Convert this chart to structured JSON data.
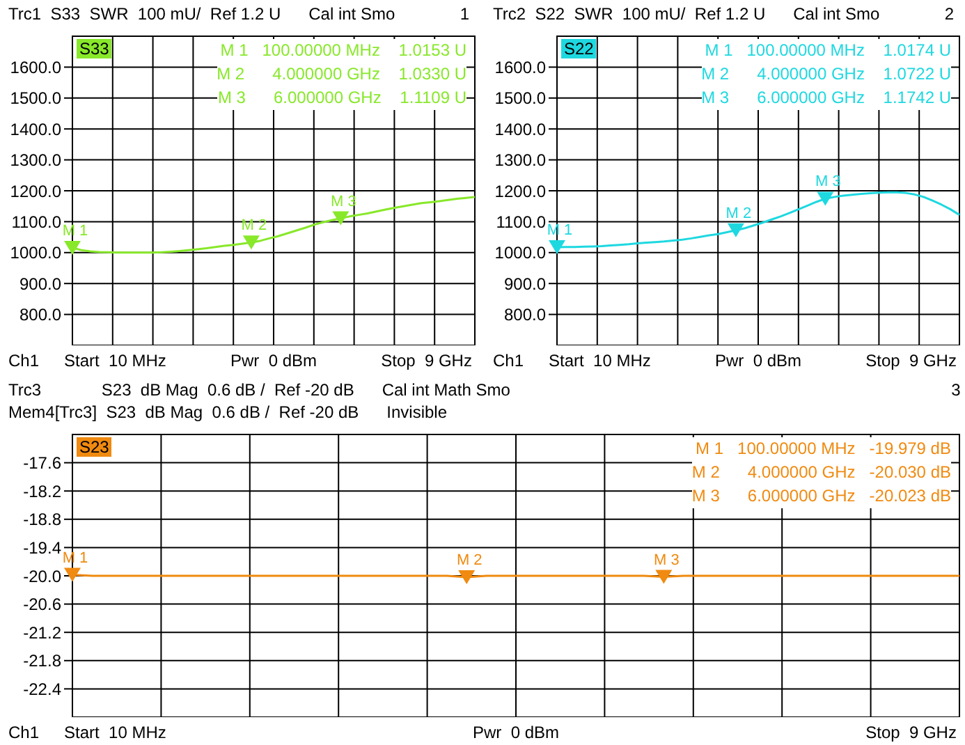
{
  "chart_data": [
    {
      "type": "line",
      "title": "Trc1  S33  SWR  100 mU/  Ref 1.2 U      Cal int Smo              1",
      "xlabel": "Ch1     Start  10 MHz     Pwr  0 dBm     Stop  9 GHz",
      "categories": [
        null,
        null,
        null,
        null,
        null,
        null,
        null,
        null,
        null,
        null,
        null,
        null,
        null,
        null,
        null,
        null,
        null,
        null,
        null,
        null,
        null,
        null,
        null,
        null,
        null,
        null,
        null,
        null,
        null,
        null,
        null,
        null,
        null,
        null,
        null,
        null,
        null,
        null,
        null,
        null,
        null,
        null,
        null,
        null,
        null,
        null
      ],
      "series": [
        {
          "name": "S33",
          "color": "#88e82a",
          "values": [
            1015.3,
            1008,
            1004,
            1002,
            1001,
            1000,
            1000,
            1000,
            1000,
            1000,
            1001,
            1003,
            1005,
            1008,
            1011,
            1014,
            1018,
            1022,
            1025,
            1029,
            1033,
            1038,
            1046,
            1053,
            1062,
            1071,
            1080,
            1090,
            1098,
            1105,
            1111,
            1117,
            1122,
            1127,
            1133,
            1139,
            1145,
            1150,
            1155,
            1160,
            1163,
            1166,
            1170,
            1174,
            1177,
            1180
          ]
        },
        {
          "type": "scatter",
          "marker": "triangle",
          "color": "#88e82a",
          "values": [
            1015.3,
            null,
            null,
            null,
            null,
            null,
            null,
            null,
            null,
            null,
            null,
            null,
            null,
            null,
            null,
            null,
            null,
            null,
            null,
            null,
            1033,
            null,
            null,
            null,
            null,
            null,
            null,
            null,
            null,
            null,
            1110.9,
            null,
            null,
            null,
            null,
            null,
            null,
            null,
            null,
            null,
            null,
            null,
            null,
            null,
            null,
            null
          ],
          "value_labels": [
            "M 1",
            null,
            null,
            null,
            null,
            null,
            null,
            null,
            null,
            null,
            null,
            null,
            null,
            null,
            null,
            null,
            null,
            null,
            null,
            null,
            "M 2",
            null,
            null,
            null,
            null,
            null,
            null,
            null,
            null,
            null,
            "M 3",
            null,
            null,
            null,
            null,
            null,
            null,
            null,
            null,
            null,
            null,
            null,
            null,
            null,
            null,
            null
          ]
        }
      ],
      "ylim": [
        700,
        1700
      ],
      "yticks": [
        {
          "value": 800,
          "label": "800.0"
        },
        {
          "value": 900,
          "label": "900.0"
        },
        {
          "value": 1000,
          "label": "1000.0"
        },
        {
          "value": 1100,
          "label": "1100.0"
        },
        {
          "value": 1200,
          "label": "1200.0"
        },
        {
          "value": 1300,
          "label": "1300.0"
        },
        {
          "value": 1400,
          "label": "1400.0"
        },
        {
          "value": 1500,
          "label": "1500.0"
        },
        {
          "value": 1600,
          "label": "1600.0"
        }
      ],
      "grid": true,
      "tick_labels": "y",
      "marker": "none",
      "line_style": "solid",
      "annotations": [
        "M 1   100.00000 MHz    1.0153 U",
        "M 2      4.000000 GHz    1.0330 U",
        "M 3      6.000000 GHz    1.1109 U"
      ]
    },
    {
      "type": "line",
      "title": "Trc2  S22  SWR  100 mU/  Ref 1.2 U      Cal int Smo              2",
      "xlabel": "Ch1     Start  10 MHz     Pwr  0 dBm     Stop  9 GHz",
      "categories": [
        null,
        null,
        null,
        null,
        null,
        null,
        null,
        null,
        null,
        null,
        null,
        null,
        null,
        null,
        null,
        null,
        null,
        null,
        null,
        null,
        null,
        null,
        null,
        null,
        null,
        null,
        null,
        null,
        null,
        null,
        null,
        null,
        null,
        null,
        null,
        null,
        null,
        null,
        null,
        null,
        null,
        null,
        null,
        null,
        null,
        null
      ],
      "series": [
        {
          "name": "S22",
          "color": "#1ed8e0",
          "values": [
            1017.4,
            1018,
            1018,
            1019,
            1020,
            1021,
            1023,
            1025,
            1027,
            1030,
            1032,
            1034,
            1036,
            1039,
            1042,
            1046,
            1051,
            1056,
            1060,
            1066,
            1072.2,
            1079,
            1088,
            1097,
            1107,
            1117,
            1128,
            1140,
            1152,
            1164,
            1174.2,
            1180,
            1184,
            1187,
            1190,
            1192,
            1194,
            1195,
            1195,
            1193,
            1188,
            1180,
            1168,
            1155,
            1140,
            1122
          ]
        },
        {
          "type": "scatter",
          "marker": "triangle",
          "color": "#1ed8e0",
          "values": [
            1017.4,
            null,
            null,
            null,
            null,
            null,
            null,
            null,
            null,
            null,
            null,
            null,
            null,
            null,
            null,
            null,
            null,
            null,
            null,
            null,
            1072.2,
            null,
            null,
            null,
            null,
            null,
            null,
            null,
            null,
            null,
            1174.2,
            null,
            null,
            null,
            null,
            null,
            null,
            null,
            null,
            null,
            null,
            null,
            null,
            null,
            null,
            null
          ],
          "value_labels": [
            "M 1",
            null,
            null,
            null,
            null,
            null,
            null,
            null,
            null,
            null,
            null,
            null,
            null,
            null,
            null,
            null,
            null,
            null,
            null,
            null,
            "M 2",
            null,
            null,
            null,
            null,
            null,
            null,
            null,
            null,
            null,
            "M 3",
            null,
            null,
            null,
            null,
            null,
            null,
            null,
            null,
            null,
            null,
            null,
            null,
            null,
            null,
            null
          ]
        }
      ],
      "ylim": [
        700,
        1700
      ],
      "yticks": [
        {
          "value": 800,
          "label": "800.0"
        },
        {
          "value": 900,
          "label": "900.0"
        },
        {
          "value": 1000,
          "label": "1000.0"
        },
        {
          "value": 1100,
          "label": "1100.0"
        },
        {
          "value": 1200,
          "label": "1200.0"
        },
        {
          "value": 1300,
          "label": "1300.0"
        },
        {
          "value": 1400,
          "label": "1400.0"
        },
        {
          "value": 1500,
          "label": "1500.0"
        },
        {
          "value": 1600,
          "label": "1600.0"
        }
      ],
      "grid": true,
      "tick_labels": "y",
      "marker": "none",
      "line_style": "solid",
      "annotations": [
        "M 1   100.00000 MHz    1.0174 U",
        "M 2      4.000000 GHz    1.0722 U",
        "M 3      6.000000 GHz    1.1742 U"
      ]
    },
    {
      "type": "line",
      "title": "Trc3             S23  dB Mag  0.6 dB /  Ref -20 dB      Cal int Math Smo                                                                                               3",
      "subtitle": "Mem4[Trc3]  S23  dB Mag  0.6 dB /  Ref -20 dB      Invisible",
      "xlabel": "Ch1     Start  10 MHz     Pwr  0 dBm     Stop  9 GHz",
      "categories": [
        null,
        null,
        null,
        null,
        null,
        null,
        null,
        null,
        null,
        null,
        null,
        null,
        null,
        null,
        null,
        null,
        null,
        null,
        null,
        null,
        null,
        null,
        null,
        null,
        null,
        null,
        null,
        null,
        null,
        null,
        null,
        null,
        null,
        null,
        null,
        null,
        null,
        null,
        null,
        null,
        null,
        null,
        null,
        null,
        null,
        null
      ],
      "series": [
        {
          "name": "S23",
          "color": "#f08a10",
          "values": [
            -19.979,
            -20.0,
            -20.0,
            -20.0,
            -20.0,
            -20.0,
            -20.0,
            -20.0,
            -20.0,
            -20.0,
            -20.0,
            -20.0,
            -20.0,
            -20.0,
            -20.0,
            -20.0,
            -20.0,
            -20.0,
            -20.0,
            -20.0,
            -20.03,
            -20.0,
            -20.0,
            -20.0,
            -20.0,
            -20.0,
            -20.0,
            -20.0,
            -20.0,
            -20.0,
            -20.023,
            -20.0,
            -20.0,
            -20.0,
            -20.0,
            -20.0,
            -20.0,
            -20.0,
            -20.0,
            -20.0,
            -20.0,
            -20.0,
            -20.0,
            -20.0,
            -20.0,
            -20.0
          ]
        },
        {
          "type": "scatter",
          "marker": "triangle",
          "color": "#f08a10",
          "values": [
            -19.979,
            null,
            null,
            null,
            null,
            null,
            null,
            null,
            null,
            null,
            null,
            null,
            null,
            null,
            null,
            null,
            null,
            null,
            null,
            null,
            -20.03,
            null,
            null,
            null,
            null,
            null,
            null,
            null,
            null,
            null,
            -20.023,
            null,
            null,
            null,
            null,
            null,
            null,
            null,
            null,
            null,
            null,
            null,
            null,
            null,
            null,
            null
          ],
          "value_labels": [
            "M 1",
            null,
            null,
            null,
            null,
            null,
            null,
            null,
            null,
            null,
            null,
            null,
            null,
            null,
            null,
            null,
            null,
            null,
            null,
            null,
            "M 2",
            null,
            null,
            null,
            null,
            null,
            null,
            null,
            null,
            null,
            "M 3",
            null,
            null,
            null,
            null,
            null,
            null,
            null,
            null,
            null,
            null,
            null,
            null,
            null,
            null,
            null
          ]
        }
      ],
      "ylim": [
        -23,
        -17
      ],
      "yticks": [
        -17.6,
        -18.2,
        -18.8,
        -19.4,
        {
          "value": -20,
          "label": "-20.0"
        },
        -20.6,
        -21.2,
        -21.8,
        -22.4
      ],
      "grid": true,
      "tick_labels": "y",
      "marker": "none",
      "line_style": "solid",
      "annotations": [
        "M 1   100.00000 MHz   -19.979 dB",
        "M 2      4.000000 GHz   -20.030 dB",
        "M 3      6.000000 GHz   -20.023 dB"
      ]
    }
  ]
}
